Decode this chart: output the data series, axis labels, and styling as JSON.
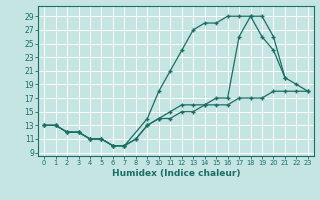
{
  "bg_color": "#c5e5e3",
  "grid_color": "#ffffff",
  "line_color": "#1a6e64",
  "xlabel": "Humidex (Indice chaleur)",
  "xlim": [
    -0.5,
    23.5
  ],
  "ylim": [
    8.5,
    30.5
  ],
  "xtick_labels": [
    "0",
    "1",
    "2",
    "3",
    "4",
    "5",
    "6",
    "7",
    "8",
    "9",
    "10",
    "11",
    "12",
    "13",
    "14",
    "15",
    "16",
    "17",
    "18",
    "19",
    "20",
    "21",
    "22",
    "23"
  ],
  "ytick_vals": [
    9,
    11,
    13,
    15,
    17,
    19,
    21,
    23,
    25,
    27,
    29
  ],
  "lx1": [
    0,
    1,
    2,
    3,
    4,
    5,
    6,
    7,
    9,
    10,
    11,
    12,
    13,
    14,
    15,
    16,
    17,
    18,
    19,
    20,
    21
  ],
  "ly1": [
    13,
    13,
    12,
    12,
    11,
    11,
    10,
    10,
    14,
    18,
    21,
    24,
    27,
    28,
    28,
    29,
    29,
    29,
    26,
    24,
    20
  ],
  "lx2": [
    0,
    1,
    2,
    3,
    4,
    5,
    6,
    7,
    8,
    9,
    10,
    11,
    12,
    13,
    14,
    15,
    16,
    17,
    18,
    19,
    20,
    21,
    22,
    23
  ],
  "ly2": [
    13,
    13,
    12,
    12,
    11,
    11,
    10,
    10,
    11,
    13,
    14,
    15,
    16,
    16,
    16,
    17,
    17,
    26,
    29,
    29,
    26,
    20,
    19,
    18
  ],
  "lx3": [
    0,
    1,
    2,
    3,
    4,
    5,
    6,
    7,
    8,
    9,
    10,
    11,
    12,
    13,
    14,
    15,
    16,
    17,
    18,
    19,
    20,
    21,
    22,
    23
  ],
  "ly3": [
    13,
    13,
    12,
    12,
    11,
    11,
    10,
    10,
    11,
    13,
    14,
    14,
    15,
    15,
    16,
    16,
    16,
    17,
    17,
    17,
    18,
    18,
    18,
    18
  ]
}
